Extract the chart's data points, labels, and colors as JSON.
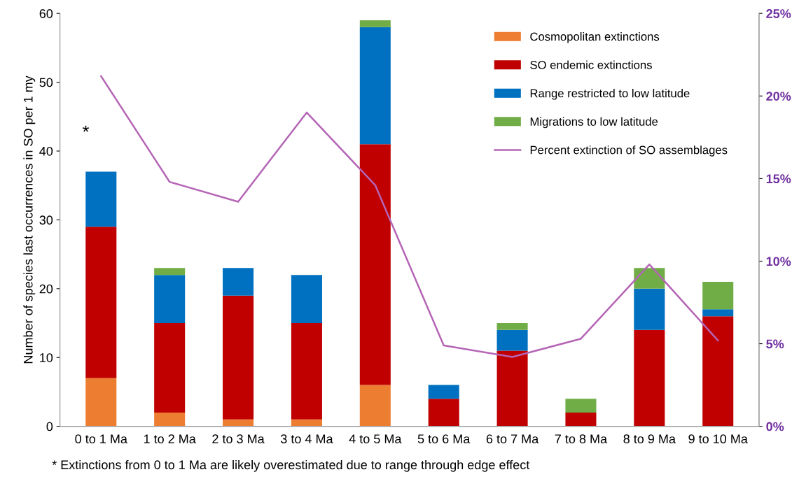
{
  "chart_data": {
    "type": "bar",
    "stacked": true,
    "ylabel": "Number of species last occurrences in SO per 1 my",
    "categories": [
      "0 to 1 Ma",
      "1 to 2 Ma",
      "2 to 3 Ma",
      "3 to 4 Ma",
      "4 to 5 Ma",
      "5 to 6 Ma",
      "6 to 7 Ma",
      "7 to 8 Ma",
      "8 to 9 Ma",
      "9 to 10 Ma"
    ],
    "series": [
      {
        "name": "Cosmopolitan extinctions",
        "color": "#ed7d31",
        "values": [
          7,
          2,
          1,
          1,
          6,
          0,
          0,
          0,
          0,
          0
        ]
      },
      {
        "name": "SO endemic extinctions",
        "color": "#c00000",
        "values": [
          22,
          13,
          18,
          14,
          35,
          4,
          11,
          2,
          14,
          16
        ]
      },
      {
        "name": "Range restricted to low latitude",
        "color": "#0070c0",
        "values": [
          8,
          7,
          4,
          7,
          17,
          2,
          3,
          0,
          6,
          1
        ]
      },
      {
        "name": "Migrations to low latitude",
        "color": "#70ad47",
        "values": [
          0,
          1,
          0,
          0,
          1,
          0,
          1,
          2,
          3,
          4
        ]
      },
      {
        "name": "Percent extinction of SO assemblages",
        "type": "line",
        "axis": "y2",
        "color": "#b565b5",
        "values": [
          21.2,
          14.8,
          13.6,
          19.0,
          14.6,
          4.9,
          4.2,
          5.3,
          9.8,
          5.2
        ]
      }
    ],
    "ylim": [
      0,
      60
    ],
    "yticks": [
      0,
      10,
      20,
      30,
      40,
      50,
      60
    ],
    "y2lim": [
      0,
      25
    ],
    "y2ticks": [
      {
        "value": 0,
        "label": "0%"
      },
      {
        "value": 5,
        "label": "5%"
      },
      {
        "value": 10,
        "label": "10%"
      },
      {
        "value": 15,
        "label": "15%"
      },
      {
        "value": 20,
        "label": "20%"
      },
      {
        "value": 25,
        "label": "25%"
      }
    ],
    "grid": false,
    "legend": "top right",
    "marker": "none",
    "annotations": [
      "*",
      "* Extinctions from 0 to 1 Ma are likely overestimated due to range through edge effect"
    ]
  }
}
